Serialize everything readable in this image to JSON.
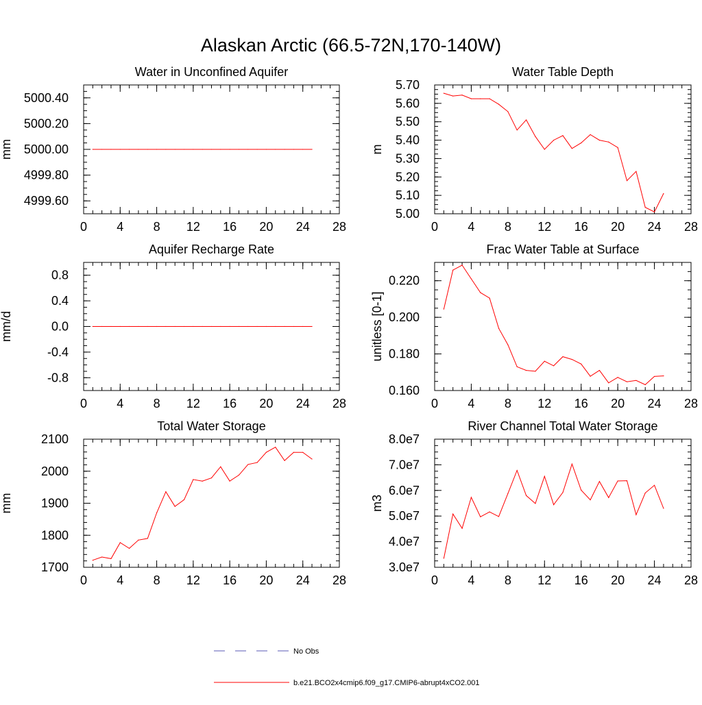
{
  "page_title": "Alaskan Arctic (66.5-72N,170-140W)",
  "colors": {
    "model_line": "#ff0000",
    "obs_line": "#5a5ab4",
    "axis": "#000000"
  },
  "legend": {
    "entries": [
      {
        "label": "No Obs",
        "style": "dashed",
        "color": "#5a5ab4"
      },
      {
        "label": "b.e21.BCO2x4cmip6.f09_g17.CMIP6-abrupt4xCO2.001",
        "style": "solid",
        "color": "#ff0000"
      }
    ]
  },
  "chart_data": [
    {
      "type": "line",
      "title": "Water in Unconfined Aquifer",
      "xlabel": "",
      "ylabel": "mm",
      "xlim": [
        0,
        28
      ],
      "ylim": [
        4999.5,
        5000.5
      ],
      "xticks": [
        0,
        4,
        8,
        12,
        16,
        20,
        24,
        28
      ],
      "yticks": [
        4999.6,
        4999.8,
        5000.0,
        5000.2,
        5000.4
      ],
      "ytick_labels": [
        "4999.60",
        "4999.80",
        "5000.00",
        "5000.20",
        "5000.40"
      ],
      "minor_y": 0.05,
      "x": [
        1,
        2,
        3,
        4,
        5,
        6,
        7,
        8,
        9,
        10,
        11,
        12,
        13,
        14,
        15,
        16,
        17,
        18,
        19,
        20,
        21,
        22,
        23,
        24,
        25
      ],
      "series": [
        {
          "name": "b.e21.BCO2x4cmip6.f09_g17.CMIP6-abrupt4xCO2.001",
          "values": [
            5000,
            5000,
            5000,
            5000,
            5000,
            5000,
            5000,
            5000,
            5000,
            5000,
            5000,
            5000,
            5000,
            5000,
            5000,
            5000,
            5000,
            5000,
            5000,
            5000,
            5000,
            5000,
            5000,
            5000,
            5000
          ]
        }
      ]
    },
    {
      "type": "line",
      "title": "Water Table Depth",
      "xlabel": "",
      "ylabel": "m",
      "xlim": [
        0,
        28
      ],
      "ylim": [
        5.0,
        5.7
      ],
      "xticks": [
        0,
        4,
        8,
        12,
        16,
        20,
        24,
        28
      ],
      "yticks": [
        5.0,
        5.1,
        5.2,
        5.3,
        5.4,
        5.5,
        5.6,
        5.7
      ],
      "ytick_labels": [
        "5.00",
        "5.10",
        "5.20",
        "5.30",
        "5.40",
        "5.50",
        "5.60",
        "5.70"
      ],
      "minor_y": 0.025,
      "x": [
        1,
        2,
        3,
        4,
        5,
        6,
        7,
        8,
        9,
        10,
        11,
        12,
        13,
        14,
        15,
        16,
        17,
        18,
        19,
        20,
        21,
        22,
        23,
        24,
        25
      ],
      "series": [
        {
          "name": "b.e21.BCO2x4cmip6.f09_g17.CMIP6-abrupt4xCO2.001",
          "values": [
            5.655,
            5.64,
            5.645,
            5.625,
            5.625,
            5.625,
            5.595,
            5.555,
            5.455,
            5.51,
            5.42,
            5.35,
            5.4,
            5.425,
            5.355,
            5.385,
            5.43,
            5.4,
            5.39,
            5.36,
            5.18,
            5.23,
            5.035,
            5.01,
            5.11
          ]
        }
      ]
    },
    {
      "type": "line",
      "title": "Aquifer Recharge Rate",
      "xlabel": "",
      "ylabel": "mm/d",
      "xlim": [
        0,
        28
      ],
      "ylim": [
        -1.0,
        1.0
      ],
      "xticks": [
        0,
        4,
        8,
        12,
        16,
        20,
        24,
        28
      ],
      "yticks": [
        -0.8,
        -0.4,
        0.0,
        0.4,
        0.8
      ],
      "ytick_labels": [
        "-0.8",
        "-0.4",
        "0.0",
        "0.4",
        "0.8"
      ],
      "minor_y": 0.1,
      "x": [
        1,
        2,
        3,
        4,
        5,
        6,
        7,
        8,
        9,
        10,
        11,
        12,
        13,
        14,
        15,
        16,
        17,
        18,
        19,
        20,
        21,
        22,
        23,
        24,
        25
      ],
      "series": [
        {
          "name": "b.e21.BCO2x4cmip6.f09_g17.CMIP6-abrupt4xCO2.001",
          "values": [
            0,
            0,
            0,
            0,
            0,
            0,
            0,
            0,
            0,
            0,
            0,
            0,
            0,
            0,
            0,
            0,
            0,
            0,
            0,
            0,
            0,
            0,
            0,
            0,
            0
          ]
        }
      ]
    },
    {
      "type": "line",
      "title": "Frac Water Table at Surface",
      "xlabel": "",
      "ylabel": "unitless [0-1]",
      "xlim": [
        0,
        28
      ],
      "ylim": [
        0.16,
        0.23
      ],
      "xticks": [
        0,
        4,
        8,
        12,
        16,
        20,
        24,
        28
      ],
      "yticks": [
        0.16,
        0.18,
        0.2,
        0.22
      ],
      "ytick_labels": [
        "0.160",
        "0.180",
        "0.200",
        "0.220"
      ],
      "minor_y": 0.005,
      "x": [
        1,
        2,
        3,
        4,
        5,
        6,
        7,
        8,
        9,
        10,
        11,
        12,
        13,
        14,
        15,
        16,
        17,
        18,
        19,
        20,
        21,
        22,
        23,
        24,
        25
      ],
      "series": [
        {
          "name": "b.e21.BCO2x4cmip6.f09_g17.CMIP6-abrupt4xCO2.001",
          "values": [
            0.2045,
            0.2258,
            0.2285,
            0.221,
            0.2135,
            0.2105,
            0.194,
            0.185,
            0.173,
            0.171,
            0.1705,
            0.176,
            0.1735,
            0.1785,
            0.177,
            0.1745,
            0.1678,
            0.171,
            0.1642,
            0.1672,
            0.1648,
            0.1655,
            0.1632,
            0.1677,
            0.168
          ]
        }
      ]
    },
    {
      "type": "line",
      "title": "Total Water Storage",
      "xlabel": "",
      "ylabel": "mm",
      "xlim": [
        0,
        28
      ],
      "ylim": [
        1700,
        2100
      ],
      "xticks": [
        0,
        4,
        8,
        12,
        16,
        20,
        24,
        28
      ],
      "yticks": [
        1700,
        1800,
        1900,
        2000,
        2100
      ],
      "ytick_labels": [
        "1700",
        "1800",
        "1900",
        "2000",
        "2100"
      ],
      "minor_y": 20,
      "x": [
        1,
        2,
        3,
        4,
        5,
        6,
        7,
        8,
        9,
        10,
        11,
        12,
        13,
        14,
        15,
        16,
        17,
        18,
        19,
        20,
        21,
        22,
        23,
        24,
        25
      ],
      "series": [
        {
          "name": "b.e21.BCO2x4cmip6.f09_g17.CMIP6-abrupt4xCO2.001",
          "values": [
            1722,
            1732,
            1727,
            1777,
            1759,
            1785,
            1790,
            1870,
            1936,
            1890,
            1911,
            1974,
            1969,
            1979,
            2014,
            1969,
            1988,
            2021,
            2027,
            2059,
            2075,
            2033,
            2059,
            2059,
            2038
          ]
        }
      ]
    },
    {
      "type": "line",
      "title": "River Channel Total Water Storage",
      "xlabel": "",
      "ylabel": "m3",
      "xlim": [
        0,
        28
      ],
      "ylim": [
        30000000.0,
        80000000.0
      ],
      "xticks": [
        0,
        4,
        8,
        12,
        16,
        20,
        24,
        28
      ],
      "yticks": [
        30000000.0,
        40000000.0,
        50000000.0,
        60000000.0,
        70000000.0,
        80000000.0
      ],
      "ytick_labels": [
        "3.0e7",
        "4.0e7",
        "5.0e7",
        "6.0e7",
        "7.0e7",
        "8.0e7"
      ],
      "minor_y": 2500000.0,
      "x": [
        1,
        2,
        3,
        4,
        5,
        6,
        7,
        8,
        9,
        10,
        11,
        12,
        13,
        14,
        15,
        16,
        17,
        18,
        19,
        20,
        21,
        22,
        23,
        24,
        25
      ],
      "series": [
        {
          "name": "b.e21.BCO2x4cmip6.f09_g17.CMIP6-abrupt4xCO2.001",
          "values": [
            33500000.0,
            50800000.0,
            45200000.0,
            57300000.0,
            49700000.0,
            51600000.0,
            49800000.0,
            58800000.0,
            67800000.0,
            58000000.0,
            54900000.0,
            65500000.0,
            54400000.0,
            59200000.0,
            70300000.0,
            60100000.0,
            56300000.0,
            63500000.0,
            57200000.0,
            63700000.0,
            63800000.0,
            50500000.0,
            59000000.0,
            62000000.0,
            53000000.0
          ]
        }
      ]
    }
  ]
}
